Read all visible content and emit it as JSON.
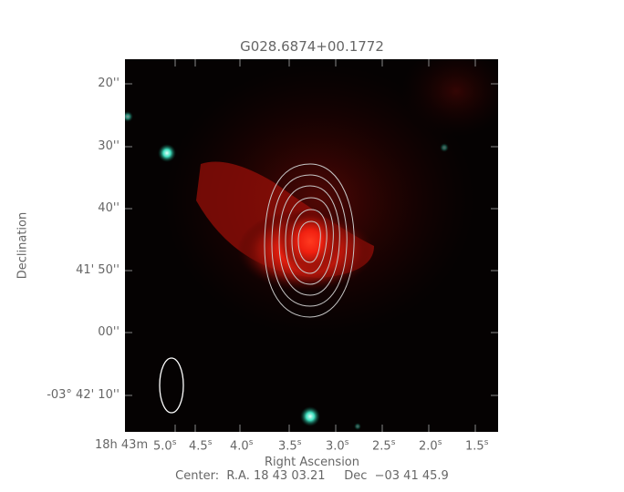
{
  "chart_data": {
    "type": "image",
    "title": "G028.6874+00.1772",
    "xlabel": "Right Ascension",
    "ylabel": "Declination",
    "x_ticks": [
      "18h 43m",
      "5.0s",
      "4.5s",
      "4.0s",
      "3.5s",
      "3.0s",
      "2.5s",
      "2.0s",
      "1.5s"
    ],
    "x_tick_parts": [
      {
        "main": "5.0",
        "sup": "s"
      },
      {
        "main": "4.5",
        "sup": "s"
      },
      {
        "main": "4.0",
        "sup": "s"
      },
      {
        "main": "3.5",
        "sup": "s"
      },
      {
        "main": "3.0",
        "sup": "s"
      },
      {
        "main": "2.5",
        "sup": "s"
      },
      {
        "main": "2.0",
        "sup": "s"
      },
      {
        "main": "1.5",
        "sup": "s"
      }
    ],
    "x_prefix": {
      "h": "18",
      "h_sup": "h",
      "m": "43",
      "m_sup": "m"
    },
    "y_ticks": [
      "20''",
      "30''",
      "40''",
      "41' 50''",
      "00''",
      "-03° 42' 10''"
    ],
    "y_prefix": {
      "deg": "−03",
      "deg_sup": "o",
      "rest": "42' 10''"
    },
    "footer": "Center:  R.A. 18 43 03.21     Dec  −03 41 45.9",
    "contour_levels": 6,
    "colors": {
      "emission": "#ff2a1a",
      "stars": "#40e0c0",
      "contours": "#c8c8c8",
      "beam": "#ffffff",
      "background": "#000000"
    }
  }
}
